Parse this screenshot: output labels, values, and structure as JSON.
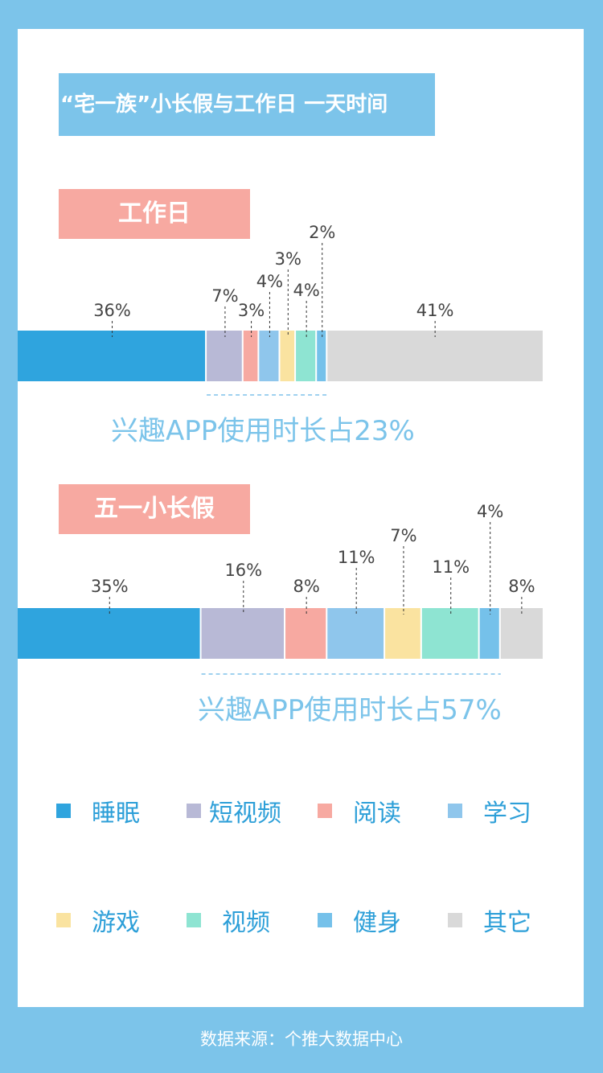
{
  "title": "“宅一族”小长假与工作日 一天时间",
  "colors": {
    "background": "#7cc4ea",
    "section_label": "#f7a9a1",
    "summary_text": "#7cc4ea",
    "legend_text": "#2d9fd8"
  },
  "legend": [
    {
      "label": "睡眠",
      "color": "#2fa4de"
    },
    {
      "label": "短视频",
      "color": "#b8b9d6"
    },
    {
      "label": "阅读",
      "color": "#f7a9a1"
    },
    {
      "label": "学习",
      "color": "#8fc6ec"
    },
    {
      "label": "游戏",
      "color": "#fae3a0"
    },
    {
      "label": "视频",
      "color": "#8ee4d2"
    },
    {
      "label": "健身",
      "color": "#75c1ea"
    },
    {
      "label": "其它",
      "color": "#d9d9d9"
    }
  ],
  "chart_data": [
    {
      "type": "bar",
      "title": "工作日",
      "categories": [
        "睡眠",
        "短视频",
        "阅读",
        "学习",
        "游戏",
        "视频",
        "健身",
        "其它"
      ],
      "values": [
        36,
        7,
        3,
        4,
        3,
        4,
        2,
        41
      ],
      "value_labels": [
        "36%",
        "7%",
        "3%",
        "4%",
        "3%",
        "4%",
        "2%",
        "41%"
      ],
      "unit": "%",
      "stacked": true,
      "summary": "兴趣APP使用时长占23%"
    },
    {
      "type": "bar",
      "title": "五一小长假",
      "categories": [
        "睡眠",
        "短视频",
        "阅读",
        "学习",
        "游戏",
        "视频",
        "健身",
        "其它"
      ],
      "values": [
        35,
        16,
        8,
        11,
        7,
        11,
        4,
        8
      ],
      "value_labels": [
        "35%",
        "16%",
        "8%",
        "11%",
        "7%",
        "11%",
        "4%",
        "8%"
      ],
      "unit": "%",
      "stacked": true,
      "summary": "兴趣APP使用时长占57%"
    }
  ],
  "source": "数据来源：个推大数据中心"
}
